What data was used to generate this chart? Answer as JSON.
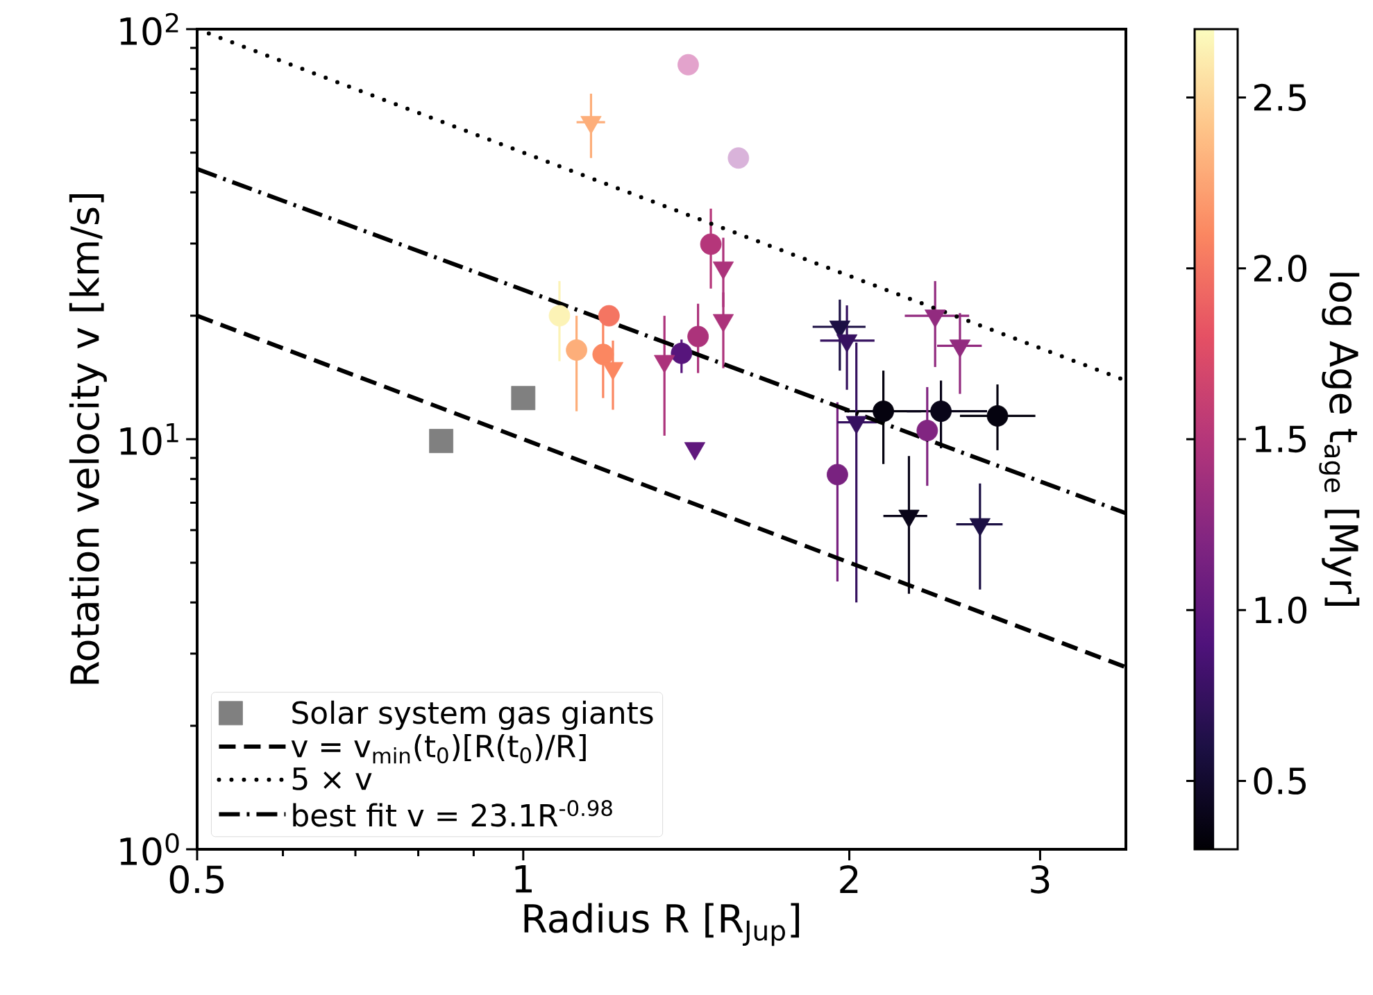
{
  "chart_data": {
    "type": "scatter",
    "xlabel": "Radius R [R$_{Jup}$]",
    "ylabel": "Rotation velocity v [km/s]",
    "clabel": "log Age t$_{age}$ [Myr]",
    "log": "xy",
    "legend": "bottom left",
    "xlim": [
      0.5,
      3.6
    ],
    "ylim": [
      1,
      100
    ],
    "xticks": [
      0.5,
      {
        "value": 0.6,
        "label": null
      },
      {
        "value": 0.7,
        "label": null
      },
      {
        "value": 0.8,
        "label": null
      },
      {
        "value": 0.9,
        "label": null
      },
      1,
      2,
      3
    ],
    "yticks": [
      {
        "value": 1,
        "label": "10$^{0}$"
      },
      {
        "value": 2,
        "label": null
      },
      {
        "value": 3,
        "label": null
      },
      {
        "value": 4,
        "label": null
      },
      {
        "value": 5,
        "label": null
      },
      {
        "value": 6,
        "label": null
      },
      {
        "value": 7,
        "label": null
      },
      {
        "value": 8,
        "label": null
      },
      {
        "value": 9,
        "label": null
      },
      {
        "value": 10,
        "label": "10$^{1}$"
      },
      {
        "value": 20,
        "label": null
      },
      {
        "value": 30,
        "label": null
      },
      {
        "value": 40,
        "label": null
      },
      {
        "value": 50,
        "label": null
      },
      {
        "value": 60,
        "label": null
      },
      {
        "value": 70,
        "label": null
      },
      {
        "value": 80,
        "label": null
      },
      {
        "value": 90,
        "label": null
      },
      {
        "value": 100,
        "label": "10$^{2}$"
      }
    ],
    "clim": [
      0.3,
      2.7
    ],
    "cticks": [
      0.5,
      {
        "value": 1,
        "label": "1.0"
      },
      1.5,
      {
        "value": 2,
        "label": "2.0"
      },
      2.5
    ],
    "series": [
      {
        "name": "Solar system gas giants",
        "type": "scatter",
        "marker": "square",
        "color": "#808080",
        "x": [
          0.84,
          1.0
        ],
        "values": [
          9.9,
          12.6
        ]
      },
      {
        "type": "scatter",
        "marker": "circle",
        "x": [
          1.08,
          1.12,
          1.2,
          1.185,
          1.4,
          1.45,
          1.49,
          1.95,
          2.15,
          2.43,
          2.74,
          2.36
        ],
        "values": [
          20.0,
          16.5,
          20.0,
          16.1,
          16.2,
          17.8,
          29.9,
          8.2,
          11.7,
          11.7,
          11.4,
          10.5
        ],
        "cvalues": [
          2.65,
          2.3,
          2.0,
          2.1,
          0.95,
          1.45,
          1.5,
          1.15,
          0.35,
          0.4,
          0.35,
          1.2
        ],
        "colors": [
          "#fcf3b6",
          "#fdae7a",
          "#f47562",
          "#fb8761",
          "#57157c",
          "#ac337b",
          "#b5367a",
          "#792280",
          "#05030f",
          "#090519",
          "#05030f",
          "#812581"
        ],
        "errors": [
          [
            15.5,
            24.3
          ],
          [
            11.7,
            20.0
          ],
          null,
          [
            12.6,
            20.0
          ],
          [
            14.5,
            17.5
          ],
          [
            14.5,
            21.4
          ],
          [
            23.3,
            36.5
          ],
          [
            4.5,
            12.3
          ],
          [
            8.7,
            14.7
          ],
          [
            9.5,
            13.9
          ],
          [
            9.4,
            13.6
          ],
          [
            7.7,
            13.4
          ]
        ],
        "xerrors": [
          null,
          null,
          null,
          null,
          null,
          null,
          null,
          null,
          [
            1.98,
            2.33
          ],
          [
            2.26,
            2.68
          ],
          [
            2.53,
            2.97
          ],
          null
        ]
      },
      {
        "type": "scatter",
        "marker": "triangle",
        "x": [
          1.155,
          1.21,
          1.35,
          1.53,
          1.53,
          1.44,
          1.96,
          1.99,
          2.4,
          2.53,
          2.03,
          2.27,
          2.64
        ],
        "values": [
          59.3,
          14.9,
          15.5,
          26.2,
          19.5,
          9.5,
          18.8,
          17.4,
          20.0,
          16.9,
          11.0,
          6.5,
          6.2
        ],
        "cvalues": [
          2.3,
          2.1,
          1.45,
          1.45,
          1.45,
          1.0,
          0.6,
          0.75,
          1.3,
          1.3,
          0.75,
          0.4,
          0.6
        ],
        "colors": [
          "#fdae7a",
          "#fb8761",
          "#ac337b",
          "#ac337b",
          "#ac337b",
          "#60187d",
          "#1c1044",
          "#361160",
          "#922b7f",
          "#922b7f",
          "#361160",
          "#090519",
          "#1c1044"
        ],
        "errors": [
          [
            48.5,
            69.6
          ],
          [
            11.8,
            17.4
          ],
          [
            10.2,
            20.0
          ],
          [
            21.0,
            31.0
          ],
          [
            14.9,
            22.8
          ],
          null,
          [
            14.7,
            21.9
          ],
          [
            13.2,
            21.2
          ],
          [
            15.0,
            24.3
          ],
          [
            12.9,
            20.3
          ],
          [
            4.0,
            17.2
          ],
          [
            4.2,
            9.1
          ],
          [
            4.3,
            7.8
          ]
        ],
        "xerrors": [
          [
            1.12,
            1.19
          ],
          null,
          null,
          null,
          null,
          null,
          [
            1.85,
            2.07
          ],
          [
            1.88,
            2.11
          ],
          [
            2.25,
            2.58
          ],
          [
            2.41,
            2.65
          ],
          [
            1.95,
            2.12
          ],
          [
            2.15,
            2.36
          ],
          [
            2.51,
            2.77
          ]
        ]
      },
      {
        "type": "scatter",
        "marker": "circle",
        "x": [
          1.42,
          1.58
        ],
        "values": [
          81.9,
          48.5
        ],
        "colors": [
          "#e3a3cc",
          "#d9b3da"
        ]
      },
      {
        "name": "v = v$_{min}$(t$_{0}$)[R(t$_{0}$)/R]",
        "type": "line",
        "line_style": "dashed",
        "color": "#000000",
        "x": [
          0.5,
          3.6
        ],
        "values": [
          20.0,
          2.78
        ]
      },
      {
        "name": "5 × v",
        "type": "line",
        "line_style": "dotted",
        "color": "#000000",
        "x": [
          0.5,
          3.6
        ],
        "values": [
          100.0,
          13.9
        ]
      },
      {
        "name": "best fit v = 23.1R$^{-0.98}$",
        "type": "line",
        "line_style": "dashdot",
        "color": "#000000",
        "x": [
          0.5,
          3.6
        ],
        "values": [
          45.6,
          6.6
        ]
      }
    ]
  }
}
